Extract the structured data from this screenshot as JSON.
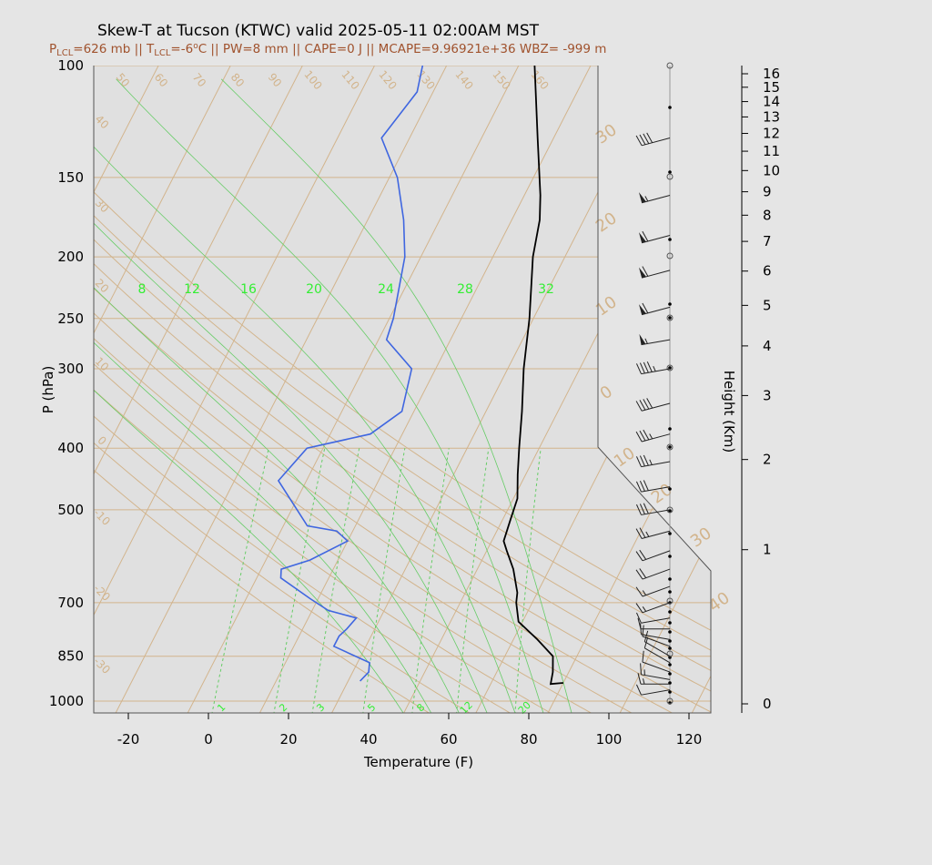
{
  "chart_data": {
    "type": "skew-t",
    "title": "Skew-T at Tucson (KTWC) valid 2025-05-11 02:00AM MST",
    "subtitle": {
      "plcl_prefix": "P",
      "plcl_sub": "LCL",
      "plcl_value": "=626 mb || T",
      "tlcl_sub": "LCL",
      "tlcl_value": "=-6",
      "deg": "o",
      "rest": "C || PW=8 mm || CAPE=0 J || MCAPE=9.96921e+36 WBZ= -999 m"
    },
    "xlabel": "Temperature (F)",
    "ylabel": "P (hPa)",
    "y2label": "Height (Km)",
    "x_ticks": [
      "-20",
      "0",
      "20",
      "40",
      "60",
      "80",
      "100",
      "120"
    ],
    "p_ticks": [
      "100",
      "150",
      "200",
      "250",
      "300",
      "400",
      "500",
      "700",
      "850",
      "1000"
    ],
    "height_ticks": [
      "0",
      "1",
      "2",
      "3",
      "4",
      "5",
      "6",
      "7",
      "8",
      "9",
      "10",
      "11",
      "12",
      "13",
      "14",
      "15",
      "16"
    ],
    "mixing_ratio_labels": [
      "1",
      "2",
      "3",
      "5",
      "8",
      "12",
      "20"
    ],
    "moist_adiabat_labels": [
      "8",
      "12",
      "16",
      "20",
      "24",
      "28",
      "32"
    ],
    "dry_adiabat_labels": [
      "50",
      "60",
      "70",
      "80",
      "90",
      "100",
      "110",
      "120",
      "130",
      "140",
      "150",
      "160"
    ],
    "left_isotherm_labels": [
      "40",
      "30",
      "20",
      "10",
      "0",
      "-10",
      "-20",
      "-30"
    ],
    "right_isotherm_labels": [
      "30",
      "20",
      "10",
      "0",
      "10",
      "20",
      "30",
      "40"
    ],
    "temperature_profile": [
      [
        936,
        86
      ],
      [
        940,
        83
      ],
      [
        900,
        82
      ],
      [
        850,
        80
      ],
      [
        800,
        74
      ],
      [
        750,
        67
      ],
      [
        700,
        64
      ],
      [
        675,
        63
      ],
      [
        620,
        59
      ],
      [
        580,
        55
      ],
      [
        560,
        53
      ],
      [
        520,
        52
      ],
      [
        480,
        51
      ],
      [
        440,
        48
      ],
      [
        400,
        45
      ],
      [
        350,
        41
      ],
      [
        300,
        36
      ],
      [
        250,
        31
      ],
      [
        220,
        27
      ],
      [
        200,
        24
      ],
      [
        175,
        21
      ],
      [
        160,
        18
      ],
      [
        130,
        10
      ],
      [
        100,
        0
      ]
    ],
    "dewpoint_profile": [
      [
        930,
        35
      ],
      [
        900,
        36
      ],
      [
        870,
        35
      ],
      [
        820,
        24
      ],
      [
        790,
        24
      ],
      [
        770,
        25
      ],
      [
        740,
        26
      ],
      [
        720,
        18
      ],
      [
        690,
        12
      ],
      [
        640,
        2
      ],
      [
        620,
        1
      ],
      [
        600,
        7
      ],
      [
        560,
        14
      ],
      [
        540,
        10
      ],
      [
        530,
        2
      ],
      [
        450,
        -11
      ],
      [
        400,
        -8
      ],
      [
        380,
        6
      ],
      [
        350,
        11
      ],
      [
        300,
        8
      ],
      [
        270,
        -2
      ],
      [
        250,
        -3
      ],
      [
        200,
        -8
      ],
      [
        175,
        -13
      ],
      [
        150,
        -20
      ],
      [
        130,
        -29
      ],
      [
        110,
        -26
      ],
      [
        100,
        -28
      ]
    ],
    "wind_barbs": [
      {
        "p": 960,
        "dir": 260,
        "kt": 12
      },
      {
        "p": 940,
        "dir": 270,
        "kt": 14
      },
      {
        "p": 925,
        "dir": 280,
        "kt": 14
      },
      {
        "p": 900,
        "dir": 290,
        "kt": 10
      },
      {
        "p": 870,
        "dir": 300,
        "kt": 8
      },
      {
        "p": 850,
        "dir": 300,
        "kt": 8
      },
      {
        "p": 820,
        "dir": 290,
        "kt": 10
      },
      {
        "p": 800,
        "dir": 280,
        "kt": 10
      },
      {
        "p": 770,
        "dir": 270,
        "kt": 12
      },
      {
        "p": 740,
        "dir": 260,
        "kt": 12
      },
      {
        "p": 700,
        "dir": 250,
        "kt": 15
      },
      {
        "p": 660,
        "dir": 250,
        "kt": 15
      },
      {
        "p": 620,
        "dir": 250,
        "kt": 20
      },
      {
        "p": 580,
        "dir": 250,
        "kt": 20
      },
      {
        "p": 540,
        "dir": 255,
        "kt": 25
      },
      {
        "p": 500,
        "dir": 260,
        "kt": 30
      },
      {
        "p": 460,
        "dir": 260,
        "kt": 30
      },
      {
        "p": 420,
        "dir": 260,
        "kt": 35
      },
      {
        "p": 380,
        "dir": 255,
        "kt": 35
      },
      {
        "p": 340,
        "dir": 255,
        "kt": 40
      },
      {
        "p": 300,
        "dir": 260,
        "kt": 45
      },
      {
        "p": 270,
        "dir": 260,
        "kt": 55
      },
      {
        "p": 240,
        "dir": 255,
        "kt": 60
      },
      {
        "p": 210,
        "dir": 255,
        "kt": 60
      },
      {
        "p": 185,
        "dir": 255,
        "kt": 60
      },
      {
        "p": 160,
        "dir": 255,
        "kt": 55
      },
      {
        "p": 130,
        "dir": 255,
        "kt": 40
      }
    ]
  }
}
